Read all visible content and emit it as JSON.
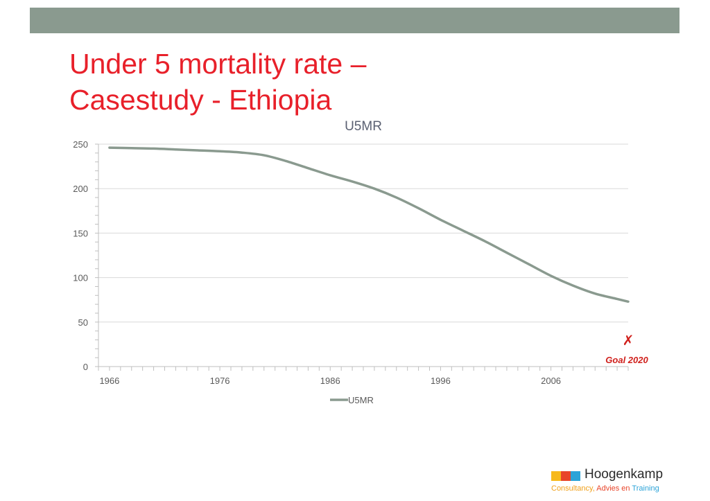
{
  "slide": {
    "title_line1": "Under 5 mortality rate –",
    "title_line2": "Casestudy - Ethiopia",
    "bar_color": "#8a9a8f",
    "title_color": "#e8202a"
  },
  "chart_data": {
    "type": "line",
    "title": "U5MR",
    "xlabel": "",
    "ylabel": "",
    "x": [
      1966,
      1968,
      1970,
      1972,
      1974,
      1976,
      1978,
      1980,
      1982,
      1984,
      1986,
      1988,
      1990,
      1992,
      1994,
      1996,
      1998,
      2000,
      2002,
      2004,
      2006,
      2008,
      2010,
      2012,
      2013
    ],
    "series": [
      {
        "name": "U5MR",
        "color": "#8a9a8f",
        "values": [
          246,
          245.5,
          245,
          244,
          243,
          242,
          240.5,
          237.5,
          231,
          223,
          215,
          208,
          200,
          190,
          178,
          165,
          153,
          141,
          128,
          115,
          102,
          91,
          82,
          76,
          73
        ]
      }
    ],
    "xlim": [
      1965,
      2013
    ],
    "ylim": [
      0,
      250
    ],
    "x_ticks": [
      1966,
      1976,
      1986,
      1996,
      2006
    ],
    "y_ticks": [
      0,
      50,
      100,
      150,
      200,
      250
    ],
    "grid": true,
    "legend": "bottom",
    "annotation": {
      "marker": "✗",
      "label": "Goal 2020",
      "color": "#d0201c"
    }
  },
  "logo": {
    "name": "Hoogenkamp",
    "square_colors": [
      "#f7b91b",
      "#e8452a",
      "#2ba3d8"
    ],
    "tagline_part1": "Consultancy,",
    "tagline_part2": "Advies en",
    "tagline_part3": "Training",
    "tagline_color1": "#f0a01a",
    "tagline_color2": "#e8452a",
    "tagline_color3": "#2ba3d8"
  }
}
